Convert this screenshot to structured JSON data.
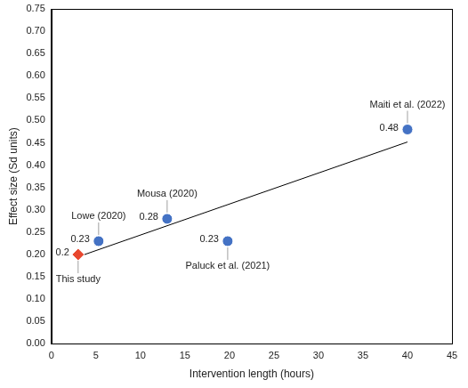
{
  "chart_data": {
    "type": "scatter",
    "x_label": "Intervention length (hours)",
    "y_label": "Effect size (Sd units)",
    "grid": false,
    "xlim": [
      0,
      45
    ],
    "xticks": [
      0,
      5,
      10,
      15,
      20,
      25,
      30,
      35,
      40,
      45
    ],
    "ylim": [
      0,
      0.75
    ],
    "yticks": [
      {
        "value": 0,
        "label": "0.00"
      },
      {
        "value": 0.05,
        "label": "0.05"
      },
      {
        "value": 0.1,
        "label": "0.10"
      },
      {
        "value": 0.15,
        "label": "0.15"
      },
      {
        "value": 0.2,
        "label": "0.20"
      },
      {
        "value": 0.25,
        "label": "0.25"
      },
      {
        "value": 0.3,
        "label": "0.30"
      },
      {
        "value": 0.35,
        "label": "0.35"
      },
      {
        "value": 0.4,
        "label": "0.40"
      },
      {
        "value": 0.45,
        "label": "0.45"
      },
      {
        "value": 0.5,
        "label": "0.50"
      },
      {
        "value": 0.55,
        "label": "0.55"
      },
      {
        "value": 0.6,
        "label": "0.60"
      },
      {
        "value": 0.65,
        "label": "0.65"
      },
      {
        "value": 0.7,
        "label": "0.70"
      },
      {
        "value": 0.75,
        "label": "0.75"
      }
    ],
    "series": [
      {
        "type": "scatter",
        "color": "#4472c4",
        "marker": "circle",
        "data_labels": true,
        "x": [
          5.3,
          13,
          19.8,
          40
        ],
        "values": [
          0.23,
          0.28,
          0.23,
          0.48
        ],
        "point_labels": [
          "Lowe (2020)",
          "Mousa (2020)",
          "Paluck et al. (2021)",
          "Maiti et al. (2022)"
        ]
      },
      {
        "type": "scatter",
        "color": "#e8472e",
        "marker": "diamond",
        "data_labels": true,
        "x": [
          3
        ],
        "values": [
          0.2
        ],
        "point_labels": [
          "This study"
        ]
      },
      {
        "type": "line",
        "color": "#000000",
        "line_style": "solid",
        "x": [
          3,
          40
        ],
        "values": [
          0.195,
          0.452
        ]
      }
    ]
  }
}
